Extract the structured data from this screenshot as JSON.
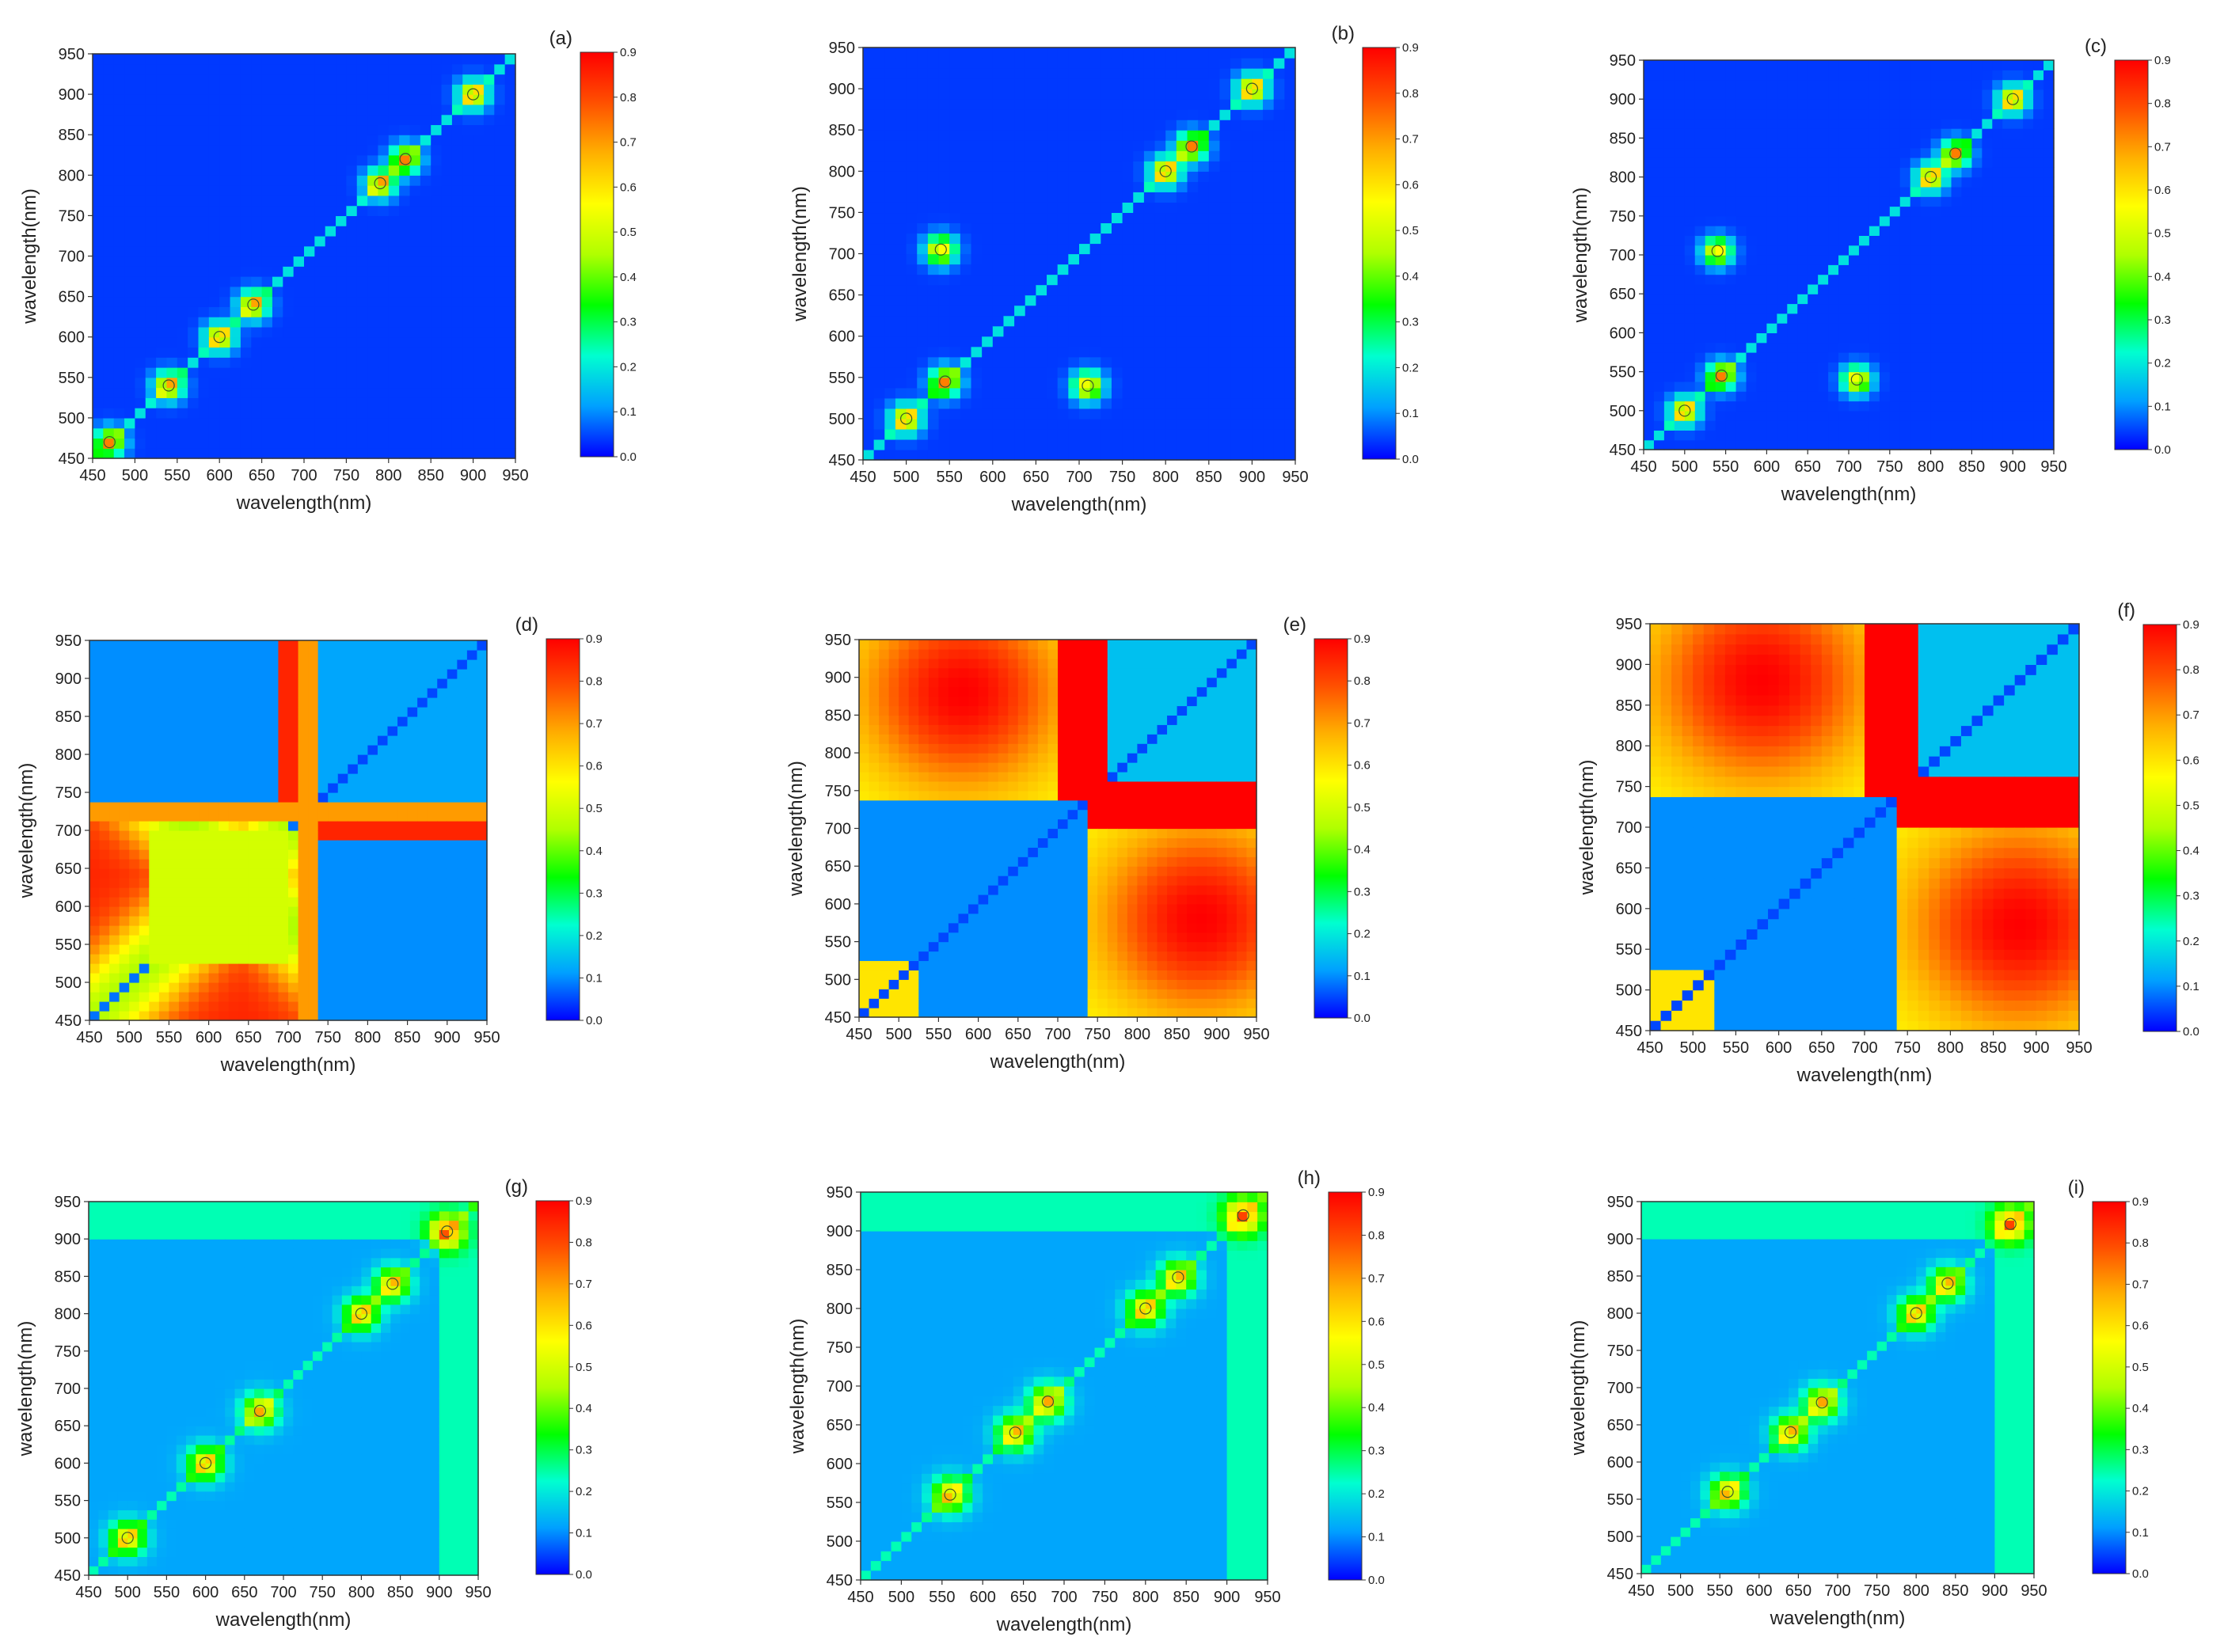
{
  "figure": {
    "colorscale": [
      "#0000ff",
      "#00a0ff",
      "#00ffd0",
      "#00ff00",
      "#b0ff00",
      "#ffff00",
      "#ffb000",
      "#ff5000",
      "#ff0000"
    ]
  },
  "chart_data": [
    {
      "type": "heatmap",
      "panel_label": "(a)",
      "pattern": "low",
      "xlabel": "wavelength(nm)",
      "ylabel": "wavelength(nm)",
      "xlim": [
        450,
        950
      ],
      "ylim": [
        450,
        950
      ],
      "x_ticks": [
        450,
        500,
        550,
        600,
        650,
        700,
        750,
        800,
        850,
        900,
        950
      ],
      "y_ticks": [
        450,
        500,
        550,
        600,
        650,
        700,
        750,
        800,
        850,
        900,
        950
      ],
      "colorbar": {
        "min": 0.0,
        "max": 0.9,
        "ticks": [
          "0.0",
          "0.1",
          "0.2",
          "0.3",
          "0.4",
          "0.5",
          "0.6",
          "0.7",
          "0.8",
          "0.9"
        ]
      },
      "hotspots": [
        [
          470,
          470
        ],
        [
          540,
          540
        ],
        [
          600,
          600
        ],
        [
          640,
          640
        ],
        [
          790,
          790
        ],
        [
          820,
          820
        ],
        [
          900,
          900
        ]
      ]
    },
    {
      "type": "heatmap",
      "panel_label": "(b)",
      "pattern": "low",
      "xlabel": "wavelength(nm)",
      "ylabel": "wavelength(nm)",
      "xlim": [
        450,
        950
      ],
      "ylim": [
        450,
        950
      ],
      "x_ticks": [
        450,
        500,
        550,
        600,
        650,
        700,
        750,
        800,
        850,
        900,
        950
      ],
      "y_ticks": [
        450,
        500,
        550,
        600,
        650,
        700,
        750,
        800,
        850,
        900,
        950
      ],
      "colorbar": {
        "min": 0.0,
        "max": 0.9,
        "ticks": [
          "0.0",
          "0.1",
          "0.2",
          "0.3",
          "0.4",
          "0.5",
          "0.6",
          "0.7",
          "0.8",
          "0.9"
        ]
      },
      "hotspots": [
        [
          500,
          500
        ],
        [
          545,
          545
        ],
        [
          540,
          705
        ],
        [
          710,
          540
        ],
        [
          800,
          800
        ],
        [
          830,
          830
        ],
        [
          900,
          900
        ]
      ]
    },
    {
      "type": "heatmap",
      "panel_label": "(c)",
      "pattern": "low",
      "xlabel": "wavelength(nm)",
      "ylabel": "wavelength(nm)",
      "xlim": [
        450,
        950
      ],
      "ylim": [
        450,
        950
      ],
      "x_ticks": [
        450,
        500,
        550,
        600,
        650,
        700,
        750,
        800,
        850,
        900,
        950
      ],
      "y_ticks": [
        450,
        500,
        550,
        600,
        650,
        700,
        750,
        800,
        850,
        900,
        950
      ],
      "colorbar": {
        "min": 0.0,
        "max": 0.9,
        "ticks": [
          "0.0",
          "0.1",
          "0.2",
          "0.3",
          "0.4",
          "0.5",
          "0.6",
          "0.7",
          "0.8",
          "0.9"
        ]
      },
      "hotspots": [
        [
          500,
          500
        ],
        [
          545,
          545
        ],
        [
          540,
          705
        ],
        [
          710,
          540
        ],
        [
          800,
          800
        ],
        [
          830,
          830
        ],
        [
          900,
          900
        ]
      ]
    },
    {
      "type": "heatmap",
      "panel_label": "(d)",
      "pattern": "block_d",
      "xlabel": "wavelength(nm)",
      "ylabel": "wavelength(nm)",
      "xlim": [
        450,
        950
      ],
      "ylim": [
        450,
        950
      ],
      "x_ticks": [
        450,
        500,
        550,
        600,
        650,
        700,
        750,
        800,
        850,
        900,
        950
      ],
      "y_ticks": [
        450,
        500,
        550,
        600,
        650,
        700,
        750,
        800,
        850,
        900,
        950
      ],
      "colorbar": {
        "min": 0.0,
        "max": 0.9,
        "ticks": [
          "0.0",
          "0.1",
          "0.2",
          "0.3",
          "0.4",
          "0.5",
          "0.6",
          "0.7",
          "0.8",
          "0.9"
        ]
      },
      "hotspots": []
    },
    {
      "type": "heatmap",
      "panel_label": "(e)",
      "pattern": "block_e",
      "xlabel": "wavelength(nm)",
      "ylabel": "wavelength(nm)",
      "xlim": [
        450,
        950
      ],
      "ylim": [
        450,
        950
      ],
      "x_ticks": [
        450,
        500,
        550,
        600,
        650,
        700,
        750,
        800,
        850,
        900,
        950
      ],
      "y_ticks": [
        450,
        500,
        550,
        600,
        650,
        700,
        750,
        800,
        850,
        900,
        950
      ],
      "colorbar": {
        "min": 0.0,
        "max": 0.9,
        "ticks": [
          "0.0",
          "0.1",
          "0.2",
          "0.3",
          "0.4",
          "0.5",
          "0.6",
          "0.7",
          "0.8",
          "0.9"
        ]
      },
      "hotspots": []
    },
    {
      "type": "heatmap",
      "panel_label": "(f)",
      "pattern": "block_e",
      "xlabel": "wavelength(nm)",
      "ylabel": "wavelength(nm)",
      "xlim": [
        450,
        950
      ],
      "ylim": [
        450,
        950
      ],
      "x_ticks": [
        450,
        500,
        550,
        600,
        650,
        700,
        750,
        800,
        850,
        900,
        950
      ],
      "y_ticks": [
        450,
        500,
        550,
        600,
        650,
        700,
        750,
        800,
        850,
        900,
        950
      ],
      "colorbar": {
        "min": 0.0,
        "max": 0.9,
        "ticks": [
          "0.0",
          "0.1",
          "0.2",
          "0.3",
          "0.4",
          "0.5",
          "0.6",
          "0.7",
          "0.8",
          "0.9"
        ]
      },
      "hotspots": []
    },
    {
      "type": "heatmap",
      "panel_label": "(g)",
      "pattern": "mid",
      "xlabel": "wavelength(nm)",
      "ylabel": "wavelength(nm)",
      "xlim": [
        450,
        950
      ],
      "ylim": [
        450,
        950
      ],
      "x_ticks": [
        450,
        500,
        550,
        600,
        650,
        700,
        750,
        800,
        850,
        900,
        950
      ],
      "y_ticks": [
        450,
        500,
        550,
        600,
        650,
        700,
        750,
        800,
        850,
        900,
        950
      ],
      "colorbar": {
        "min": 0.0,
        "max": 0.9,
        "ticks": [
          "0.0",
          "0.1",
          "0.2",
          "0.3",
          "0.4",
          "0.5",
          "0.6",
          "0.7",
          "0.8",
          "0.9"
        ]
      },
      "hotspots": [
        [
          500,
          500
        ],
        [
          600,
          600
        ],
        [
          670,
          670
        ],
        [
          800,
          800
        ],
        [
          840,
          840
        ],
        [
          910,
          910
        ]
      ]
    },
    {
      "type": "heatmap",
      "panel_label": "(h)",
      "pattern": "mid",
      "xlabel": "wavelength(nm)",
      "ylabel": "wavelength(nm)",
      "xlim": [
        450,
        950
      ],
      "ylim": [
        450,
        950
      ],
      "x_ticks": [
        450,
        500,
        550,
        600,
        650,
        700,
        750,
        800,
        850,
        900,
        950
      ],
      "y_ticks": [
        450,
        500,
        550,
        600,
        650,
        700,
        750,
        800,
        850,
        900,
        950
      ],
      "colorbar": {
        "min": 0.0,
        "max": 0.9,
        "ticks": [
          "0.0",
          "0.1",
          "0.2",
          "0.3",
          "0.4",
          "0.5",
          "0.6",
          "0.7",
          "0.8",
          "0.9"
        ]
      },
      "hotspots": [
        [
          560,
          560
        ],
        [
          640,
          640
        ],
        [
          680,
          680
        ],
        [
          800,
          800
        ],
        [
          840,
          840
        ],
        [
          920,
          920
        ]
      ]
    },
    {
      "type": "heatmap",
      "panel_label": "(i)",
      "pattern": "mid",
      "xlabel": "wavelength(nm)",
      "ylabel": "wavelength(nm)",
      "xlim": [
        450,
        950
      ],
      "ylim": [
        450,
        950
      ],
      "x_ticks": [
        450,
        500,
        550,
        600,
        650,
        700,
        750,
        800,
        850,
        900,
        950
      ],
      "y_ticks": [
        450,
        500,
        550,
        600,
        650,
        700,
        750,
        800,
        850,
        900,
        950
      ],
      "colorbar": {
        "min": 0.0,
        "max": 0.9,
        "ticks": [
          "0.0",
          "0.1",
          "0.2",
          "0.3",
          "0.4",
          "0.5",
          "0.6",
          "0.7",
          "0.8",
          "0.9"
        ]
      },
      "hotspots": [
        [
          560,
          560
        ],
        [
          640,
          640
        ],
        [
          680,
          680
        ],
        [
          800,
          800
        ],
        [
          840,
          840
        ],
        [
          920,
          920
        ]
      ]
    }
  ]
}
